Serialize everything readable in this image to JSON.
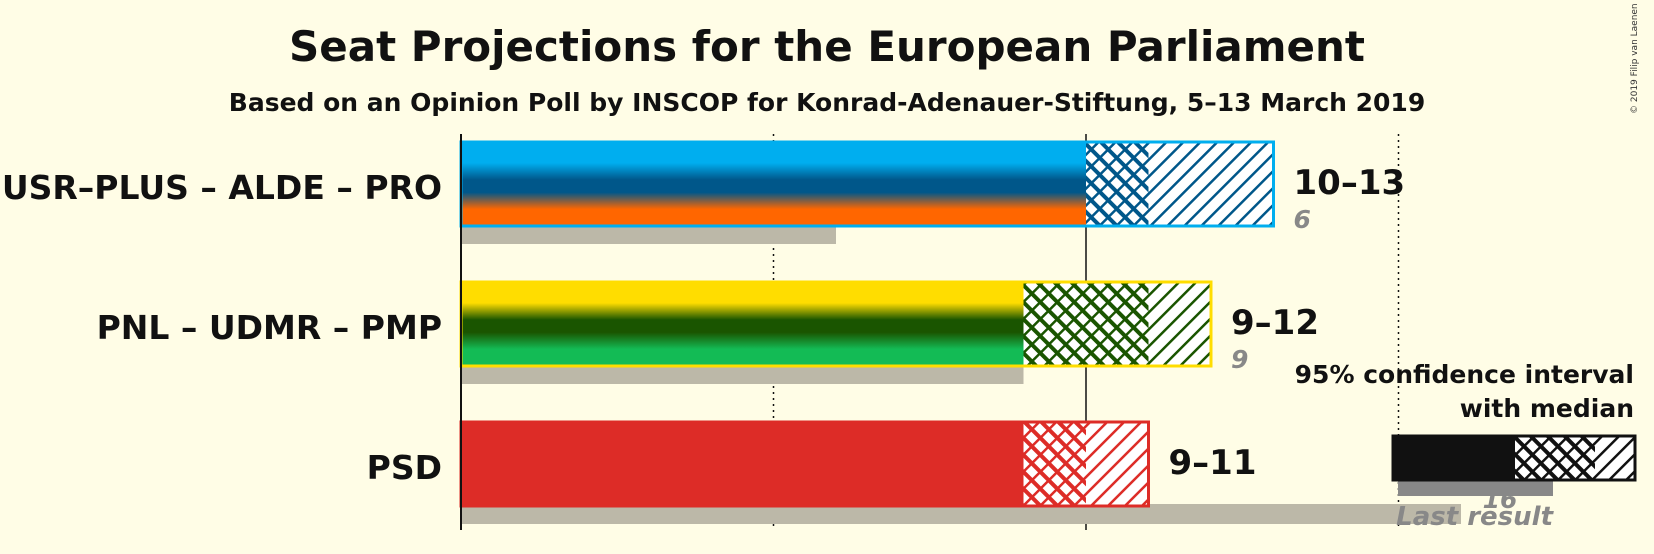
{
  "title": "Seat Projections for the European Parliament",
  "subtitle": "Based on an Opinion Poll by INSCOP for Konrad-Adenauer-Stiftung, 5–13 March 2019",
  "copyright": "© 2019 Filip van Laenen",
  "chart_data": {
    "type": "bar",
    "orientation": "horizontal",
    "xlim": [
      0,
      20
    ],
    "gridlines": [
      0,
      5,
      10,
      15
    ],
    "parties": [
      {
        "name": "USR–PLUS – ALDE – PRO",
        "low": 10,
        "median": 11,
        "high": 13,
        "range_label": "10–13",
        "last_result": 6,
        "last_label": "6",
        "colors": [
          "#00aeef",
          "#00578a",
          "#ff6600"
        ]
      },
      {
        "name": "PNL – UDMR – PMP",
        "low": 9,
        "median": 11,
        "high": 12,
        "range_label": "9–12",
        "last_result": 9,
        "last_label": "9",
        "colors": [
          "#ffdd00",
          "#1a5500",
          "#13bb55"
        ]
      },
      {
        "name": "PSD",
        "low": 9,
        "median": 10,
        "high": 11,
        "range_label": "9–11",
        "last_result": 16,
        "last_label": "16",
        "colors": [
          "#dd2c27"
        ]
      }
    ],
    "legend": {
      "line1": "95% confidence interval",
      "line2": "with median",
      "last_result_label": "Last result",
      "position": "bottom-right"
    }
  }
}
